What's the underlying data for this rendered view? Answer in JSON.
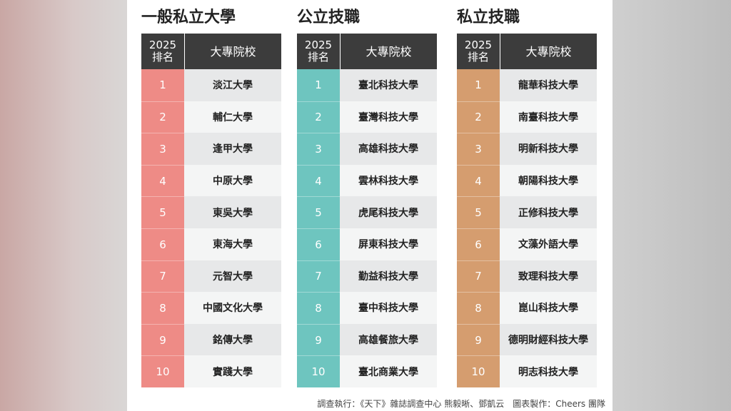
{
  "tables": [
    {
      "title": "一般私立大學",
      "header": {
        "rank": [
          "2025",
          "排名"
        ],
        "name": "大專院校"
      },
      "color": "#ee8b86",
      "rows": [
        {
          "rank": 1,
          "name": "淡江大學"
        },
        {
          "rank": 2,
          "name": "輔仁大學"
        },
        {
          "rank": 3,
          "name": "逢甲大學"
        },
        {
          "rank": 4,
          "name": "中原大學"
        },
        {
          "rank": 5,
          "name": "東吳大學"
        },
        {
          "rank": 6,
          "name": "東海大學"
        },
        {
          "rank": 7,
          "name": "元智大學"
        },
        {
          "rank": 8,
          "name": "中國文化大學"
        },
        {
          "rank": 9,
          "name": "銘傳大學"
        },
        {
          "rank": 10,
          "name": "實踐大學"
        }
      ]
    },
    {
      "title": "公立技職",
      "header": {
        "rank": [
          "2025",
          "排名"
        ],
        "name": "大專院校"
      },
      "color": "#6ec5bf",
      "rows": [
        {
          "rank": 1,
          "name": "臺北科技大學"
        },
        {
          "rank": 2,
          "name": "臺灣科技大學"
        },
        {
          "rank": 3,
          "name": "高雄科技大學"
        },
        {
          "rank": 4,
          "name": "雲林科技大學"
        },
        {
          "rank": 5,
          "name": "虎尾科技大學"
        },
        {
          "rank": 6,
          "name": "屏東科技大學"
        },
        {
          "rank": 7,
          "name": "勤益科技大學"
        },
        {
          "rank": 8,
          "name": "臺中科技大學"
        },
        {
          "rank": 9,
          "name": "高雄餐旅大學"
        },
        {
          "rank": 10,
          "name": "臺北商業大學"
        }
      ]
    },
    {
      "title": "私立技職",
      "header": {
        "rank": [
          "2025",
          "排名"
        ],
        "name": "大專院校"
      },
      "color": "#d59d6f",
      "rows": [
        {
          "rank": 1,
          "name": "龍華科技大學"
        },
        {
          "rank": 2,
          "name": "南臺科技大學"
        },
        {
          "rank": 3,
          "name": "明新科技大學"
        },
        {
          "rank": 4,
          "name": "朝陽科技大學"
        },
        {
          "rank": 5,
          "name": "正修科技大學"
        },
        {
          "rank": 6,
          "name": "文藻外語大學"
        },
        {
          "rank": 7,
          "name": "致理科技大學"
        },
        {
          "rank": 8,
          "name": "崑山科技大學"
        },
        {
          "rank": 9,
          "name": "德明財經科技大學"
        },
        {
          "rank": 10,
          "name": "明志科技大學"
        }
      ]
    }
  ],
  "footer": "調查執行：《天下》雜誌調查中心 熊毅晰、鄧凱云　圖表製作：Cheers 團隊"
}
